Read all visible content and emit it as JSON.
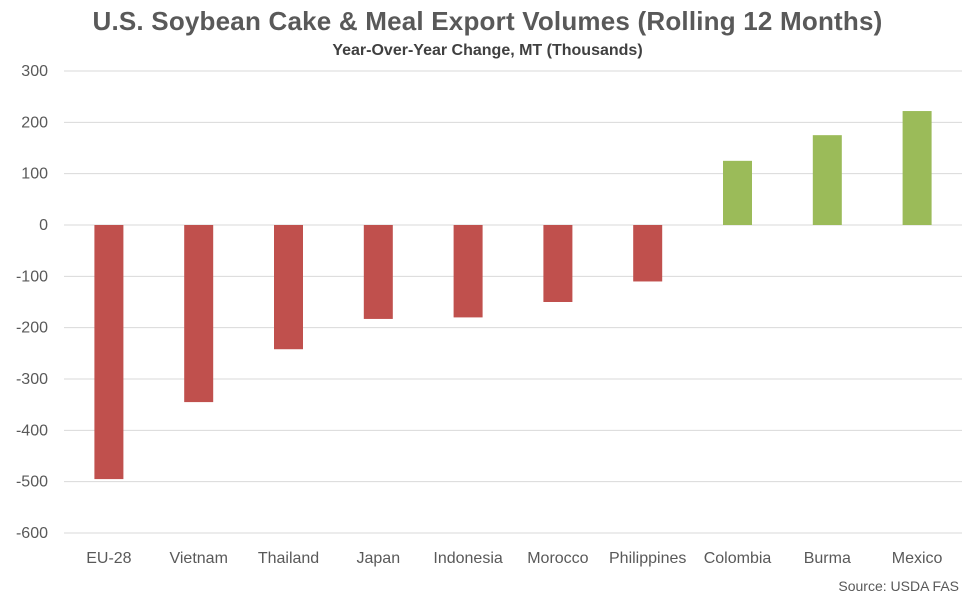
{
  "chart_data": {
    "type": "bar",
    "title": "U.S. Soybean Cake & Meal Export Volumes (Rolling 12 Months)",
    "subtitle": "Year-Over-Year Change, MT (Thousands)",
    "xlabel": "",
    "ylabel": "",
    "categories": [
      "EU-28",
      "Vietnam",
      "Thailand",
      "Japan",
      "Indonesia",
      "Morocco",
      "Philippines",
      "Colombia",
      "Burma",
      "Mexico"
    ],
    "values": [
      -495,
      -345,
      -242,
      -183,
      -180,
      -150,
      -110,
      125,
      175,
      222
    ],
    "ylim": [
      -600,
      300
    ],
    "yticks": [
      300,
      200,
      100,
      0,
      -100,
      -200,
      -300,
      -400,
      -500,
      -600
    ],
    "grid": true,
    "legend": "none",
    "colors": {
      "negative": "#c0504d",
      "positive": "#9bbb59",
      "grid": "#d9d9d9"
    },
    "source": "Source: USDA FAS"
  }
}
